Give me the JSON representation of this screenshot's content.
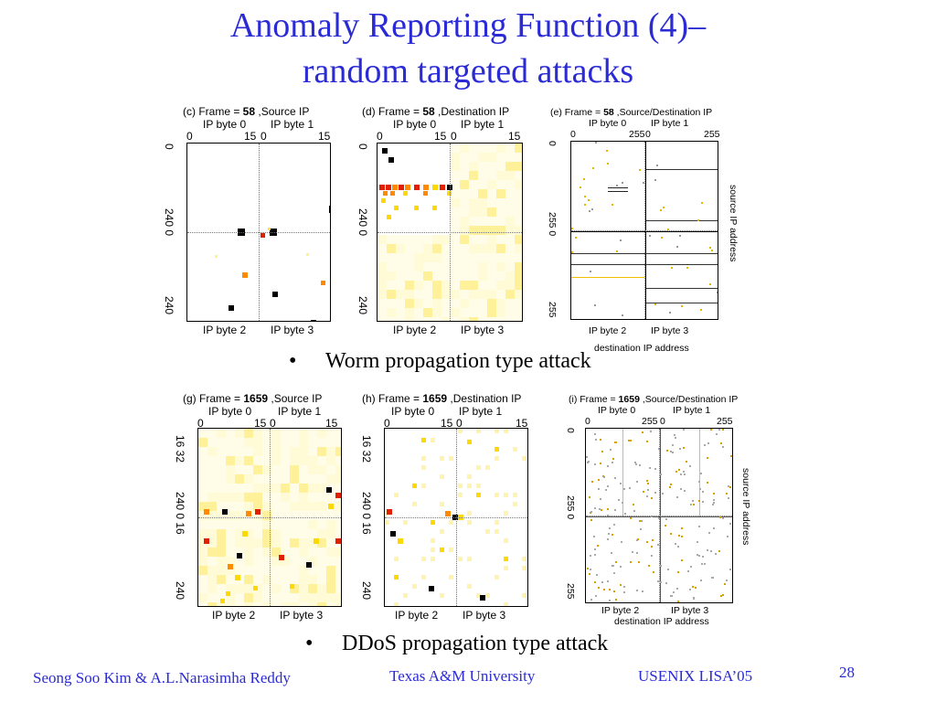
{
  "slide": {
    "title_line1": "Anomaly Reporting Function (4)–",
    "title_line2": "random targeted attacks",
    "bullet1": "Worm propagation type attack",
    "bullet2": "DDoS propagation type attack",
    "bullet_symbol": "•",
    "page_number": "28"
  },
  "footer": {
    "authors": "Seong Soo Kim & A.L.Narasimha Reddy",
    "university": "Texas A&M University",
    "conference": "USENIX LISA’05"
  },
  "panels": {
    "c": {
      "title": "(c) Frame = ",
      "frame": "58",
      "suffix": " ,Source IP",
      "top_left": "IP byte 0",
      "top_right": "IP byte 1",
      "bottom_left": "IP byte 2",
      "bottom_right": "IP byte 3",
      "ticks_top": [
        "0",
        "15",
        "0",
        "15"
      ],
      "ticks_left": [
        "0",
        "240 0",
        "240"
      ]
    },
    "d": {
      "title": "(d) Frame = ",
      "frame": "58",
      "suffix": " ,Destination IP",
      "top_left": "IP byte 0",
      "top_right": "IP byte 1",
      "bottom_left": "IP byte 2",
      "bottom_right": "IP byte 3",
      "ticks_top": [
        "0",
        "15",
        "0",
        "15"
      ],
      "ticks_left": [
        "0",
        "240 0",
        "240"
      ]
    },
    "e": {
      "title": "(e) Frame = ",
      "frame": "58",
      "suffix": " ,Source/Destination IP",
      "top_left": "IP byte 0",
      "top_right": "IP byte 1",
      "bottom_left": "IP byte 2",
      "bottom_right": "IP byte 3",
      "ticks_top": [
        "0",
        "255",
        "0",
        "255"
      ],
      "ticks_left": [
        "0",
        "255 0",
        "255"
      ],
      "right_label": "source IP address",
      "bottom_label": "destination IP address"
    },
    "g": {
      "title": "(g) Frame = ",
      "frame": "1659",
      "suffix": " ,Source IP",
      "top_left": "IP byte 0",
      "top_right": "IP byte 1",
      "bottom_left": "IP byte 2",
      "bottom_right": "IP byte 3",
      "ticks_top": [
        "0",
        "15",
        "0",
        "15"
      ],
      "ticks_left": [
        "16 32",
        "240 0 16",
        "240"
      ]
    },
    "h": {
      "title": "(h) Frame = ",
      "frame": "1659",
      "suffix": " ,Destination IP",
      "top_left": "IP byte 0",
      "top_right": "IP byte 1",
      "bottom_left": "IP byte 2",
      "bottom_right": "IP byte 3",
      "ticks_top": [
        "0",
        "15",
        "0",
        "15"
      ],
      "ticks_left": [
        "16 32",
        "240 0 16",
        "240"
      ]
    },
    "i": {
      "title": "(i) Frame = ",
      "frame": "1659",
      "suffix": " ,Source/Destination IP",
      "top_left": "IP byte 0",
      "top_right": "IP byte 1",
      "bottom_left": "IP byte 2",
      "bottom_right": "IP byte 3",
      "ticks_top": [
        "0",
        "255",
        "0",
        "255"
      ],
      "ticks_left": [
        "0",
        "255 0",
        "255"
      ],
      "right_label": "source IP address",
      "bottom_label": "destination IP address"
    }
  },
  "colors": {
    "title": "#2b2bd6",
    "footer": "#2b2bd6",
    "heat_low": "#fffbd0",
    "heat_mid": "#ffd800",
    "heat_high": "#d62000",
    "heat_max": "#000000"
  }
}
